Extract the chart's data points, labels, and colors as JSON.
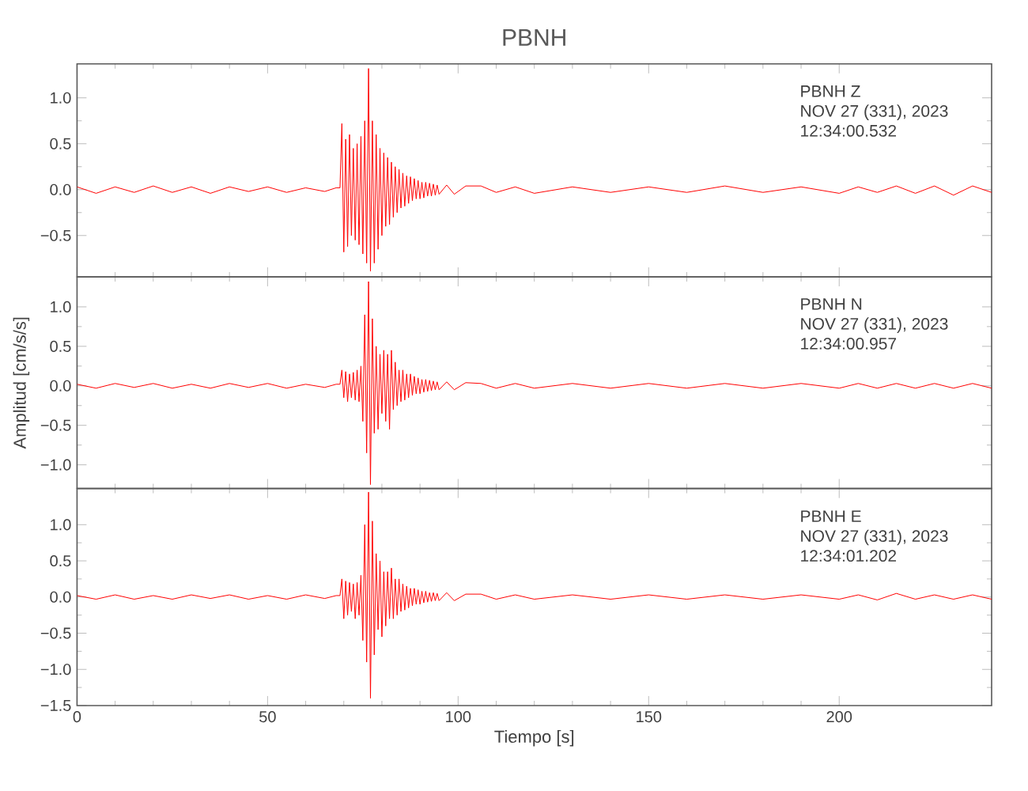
{
  "chart_data": [
    {
      "type": "line",
      "title": "PBNH",
      "color": "#ff0000",
      "tick_labels": "y",
      "annotations": [
        "PBNH   Z",
        "NOV 27 (331), 2023",
        "12:34:00.532"
      ],
      "xlim": [
        0,
        240
      ],
      "xticks": [
        0,
        50,
        100,
        150,
        200
      ],
      "ylim": [
        -0.95,
        1.37
      ],
      "yticks": [
        {
          "value": -0.5,
          "label": "−0.5"
        },
        {
          "value": 0,
          "label": "0.0"
        },
        {
          "value": 0.5,
          "label": "0.5"
        },
        {
          "value": 1,
          "label": "1.0"
        }
      ],
      "x": [
        0,
        5,
        10,
        15,
        20,
        25,
        30,
        35,
        40,
        45,
        50,
        55,
        60,
        65,
        68,
        69,
        69.5,
        70,
        70.5,
        71,
        71.5,
        72,
        72.5,
        73,
        73.5,
        74,
        74.5,
        75,
        75.5,
        76,
        76.5,
        77,
        77.5,
        78,
        78.5,
        79,
        79.5,
        80,
        80.5,
        81,
        81.5,
        82,
        82.5,
        83,
        83.5,
        84,
        84.5,
        85,
        85.5,
        86,
        86.5,
        87,
        87.5,
        88,
        88.5,
        89,
        89.5,
        90,
        90.5,
        91,
        91.5,
        92,
        92.5,
        93,
        93.5,
        94,
        94.5,
        95,
        97,
        99,
        102,
        106,
        110,
        115,
        120,
        130,
        140,
        150,
        160,
        170,
        180,
        190,
        200,
        205,
        210,
        215,
        220,
        225,
        230,
        235,
        240
      ],
      "values": [
        0.03,
        -0.04,
        0.03,
        -0.03,
        0.04,
        -0.03,
        0.03,
        -0.04,
        0.03,
        -0.02,
        0.03,
        -0.03,
        0.02,
        -0.02,
        0.02,
        0.02,
        0.72,
        -0.68,
        0.55,
        -0.62,
        0.6,
        -0.5,
        0.45,
        -0.55,
        0.5,
        -0.6,
        0.58,
        -0.7,
        0.75,
        -0.8,
        1.32,
        -0.89,
        0.75,
        -0.8,
        0.6,
        -0.65,
        0.45,
        -0.5,
        0.4,
        -0.4,
        0.35,
        -0.38,
        0.3,
        -0.3,
        0.25,
        -0.25,
        0.22,
        -0.2,
        0.18,
        -0.18,
        0.15,
        -0.15,
        0.14,
        -0.12,
        0.12,
        -0.1,
        0.1,
        -0.1,
        0.08,
        -0.09,
        0.08,
        -0.07,
        0.07,
        -0.07,
        0.06,
        -0.06,
        0.05,
        -0.05,
        0.05,
        -0.05,
        0.04,
        0.04,
        -0.03,
        0.03,
        -0.04,
        0.03,
        -0.03,
        0.03,
        -0.03,
        0.04,
        -0.03,
        0.03,
        -0.04,
        0.03,
        -0.03,
        0.04,
        -0.04,
        0.04,
        -0.06,
        0.04,
        -0.03
      ]
    },
    {
      "type": "line",
      "ylabel": "Amplitud [cm/s/s]",
      "color": "#ff0000",
      "tick_labels": "y",
      "annotations": [
        "PBNH   N",
        "NOV 27 (331), 2023",
        "12:34:00.957"
      ],
      "xlim": [
        0,
        240
      ],
      "xticks": [
        0,
        50,
        100,
        150,
        200
      ],
      "ylim": [
        -1.3,
        1.38
      ],
      "yticks": [
        {
          "value": -1,
          "label": "−1.0"
        },
        {
          "value": -0.5,
          "label": "−0.5"
        },
        {
          "value": 0,
          "label": "0.0"
        },
        {
          "value": 0.5,
          "label": "0.5"
        },
        {
          "value": 1,
          "label": "1.0"
        }
      ],
      "x": [
        0,
        5,
        10,
        15,
        20,
        25,
        30,
        35,
        40,
        45,
        50,
        55,
        60,
        65,
        68,
        69,
        69.5,
        70,
        70.5,
        71,
        71.5,
        72,
        72.5,
        73,
        73.5,
        74,
        74.5,
        75,
        75.5,
        76,
        76.5,
        77,
        77.5,
        78,
        78.5,
        79,
        79.5,
        80,
        80.5,
        81,
        81.5,
        82,
        82.5,
        83,
        83.5,
        84,
        84.5,
        85,
        85.5,
        86,
        86.5,
        87,
        87.5,
        88,
        88.5,
        89,
        89.5,
        90,
        90.5,
        91,
        91.5,
        92,
        92.5,
        93,
        93.5,
        94,
        94.5,
        95,
        97,
        99,
        102,
        106,
        110,
        115,
        120,
        130,
        140,
        150,
        160,
        170,
        180,
        190,
        200,
        205,
        210,
        215,
        220,
        225,
        230,
        235,
        240
      ],
      "values": [
        0.02,
        -0.03,
        0.03,
        -0.02,
        0.03,
        -0.03,
        0.02,
        -0.03,
        0.03,
        -0.02,
        0.03,
        -0.03,
        0.02,
        -0.02,
        0.02,
        0.02,
        0.2,
        -0.15,
        0.18,
        -0.2,
        0.15,
        -0.15,
        0.17,
        -0.18,
        0.2,
        -0.2,
        0.25,
        -0.45,
        0.9,
        -0.85,
        1.32,
        -1.25,
        0.85,
        -0.6,
        0.5,
        -0.55,
        0.4,
        -0.35,
        0.45,
        -0.45,
        0.4,
        -0.55,
        0.45,
        -0.3,
        0.3,
        -0.25,
        0.2,
        -0.2,
        0.2,
        -0.18,
        0.15,
        -0.15,
        0.15,
        -0.12,
        0.12,
        -0.1,
        0.1,
        -0.1,
        0.08,
        -0.08,
        0.08,
        -0.07,
        0.07,
        -0.06,
        0.06,
        -0.05,
        0.05,
        -0.05,
        0.05,
        -0.05,
        0.04,
        0.03,
        -0.03,
        0.03,
        -0.03,
        0.03,
        -0.03,
        0.03,
        -0.03,
        0.03,
        -0.03,
        0.03,
        -0.03,
        0.03,
        -0.03,
        0.03,
        -0.03,
        0.03,
        -0.03,
        0.03,
        -0.03
      ]
    },
    {
      "type": "line",
      "xlabel": "Tiempo [s]",
      "color": "#ff0000",
      "annotations": [
        "PBNH   E",
        "NOV 27 (331), 2023",
        "12:34:01.202"
      ],
      "xlim": [
        0,
        240
      ],
      "xticks": [
        0,
        50,
        100,
        150,
        200
      ],
      "ylim": [
        -1.5,
        1.5
      ],
      "yticks": [
        {
          "value": -1.5,
          "label": "−1.5"
        },
        {
          "value": -1,
          "label": "−1.0"
        },
        {
          "value": -0.5,
          "label": "−0.5"
        },
        {
          "value": 0,
          "label": "0.0"
        },
        {
          "value": 0.5,
          "label": "0.5"
        },
        {
          "value": 1,
          "label": "1.0"
        }
      ],
      "x": [
        0,
        5,
        10,
        15,
        20,
        25,
        30,
        35,
        40,
        45,
        50,
        55,
        60,
        65,
        68,
        69,
        69.5,
        70,
        70.5,
        71,
        71.5,
        72,
        72.5,
        73,
        73.5,
        74,
        74.5,
        75,
        75.5,
        76,
        76.5,
        77,
        77.5,
        78,
        78.5,
        79,
        79.5,
        80,
        80.5,
        81,
        81.5,
        82,
        82.5,
        83,
        83.5,
        84,
        84.5,
        85,
        85.5,
        86,
        86.5,
        87,
        87.5,
        88,
        88.5,
        89,
        89.5,
        90,
        90.5,
        91,
        91.5,
        92,
        92.5,
        93,
        93.5,
        94,
        94.5,
        95,
        97,
        99,
        102,
        106,
        110,
        115,
        120,
        130,
        140,
        150,
        160,
        170,
        180,
        190,
        200,
        205,
        210,
        215,
        220,
        225,
        230,
        235,
        240
      ],
      "values": [
        0.02,
        -0.03,
        0.03,
        -0.03,
        0.02,
        -0.03,
        0.03,
        -0.02,
        0.03,
        -0.03,
        0.02,
        -0.03,
        0.03,
        -0.02,
        0.02,
        0.02,
        0.25,
        -0.3,
        0.22,
        -0.25,
        0.2,
        -0.2,
        0.18,
        -0.3,
        0.2,
        -0.25,
        0.3,
        -0.6,
        1.0,
        -0.9,
        1.45,
        -1.4,
        1.05,
        -0.8,
        0.6,
        -0.45,
        0.5,
        -0.55,
        0.35,
        -0.4,
        0.35,
        -0.3,
        0.4,
        -0.3,
        0.25,
        -0.25,
        0.25,
        -0.2,
        0.18,
        -0.18,
        0.15,
        -0.15,
        0.12,
        -0.12,
        0.12,
        -0.1,
        0.1,
        -0.1,
        0.08,
        -0.08,
        0.08,
        -0.07,
        0.06,
        -0.06,
        0.06,
        -0.05,
        0.05,
        -0.05,
        0.06,
        -0.05,
        0.04,
        0.04,
        -0.03,
        0.03,
        -0.03,
        0.03,
        -0.03,
        0.03,
        -0.03,
        0.03,
        -0.03,
        0.03,
        -0.03,
        0.03,
        -0.04,
        0.05,
        -0.03,
        0.03,
        -0.03,
        0.03,
        -0.03
      ]
    }
  ]
}
